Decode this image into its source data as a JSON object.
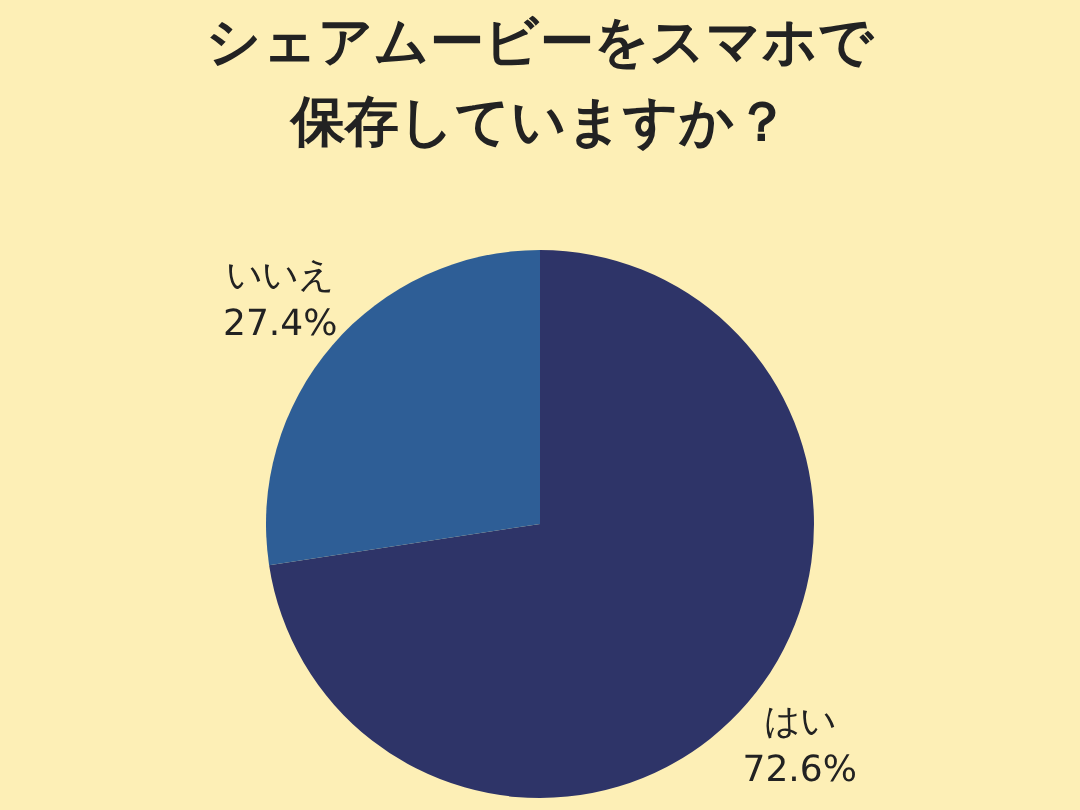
{
  "chart_data": {
    "type": "pie",
    "title": "シェアムービーをスマホで保存していますか？",
    "categories": [
      "はい",
      "いいえ"
    ],
    "values": [
      72.6,
      27.4
    ],
    "colors": [
      "#2e3468",
      "#2e5e96"
    ],
    "value_labels": [
      "72.6%",
      "27.4%"
    ]
  }
}
